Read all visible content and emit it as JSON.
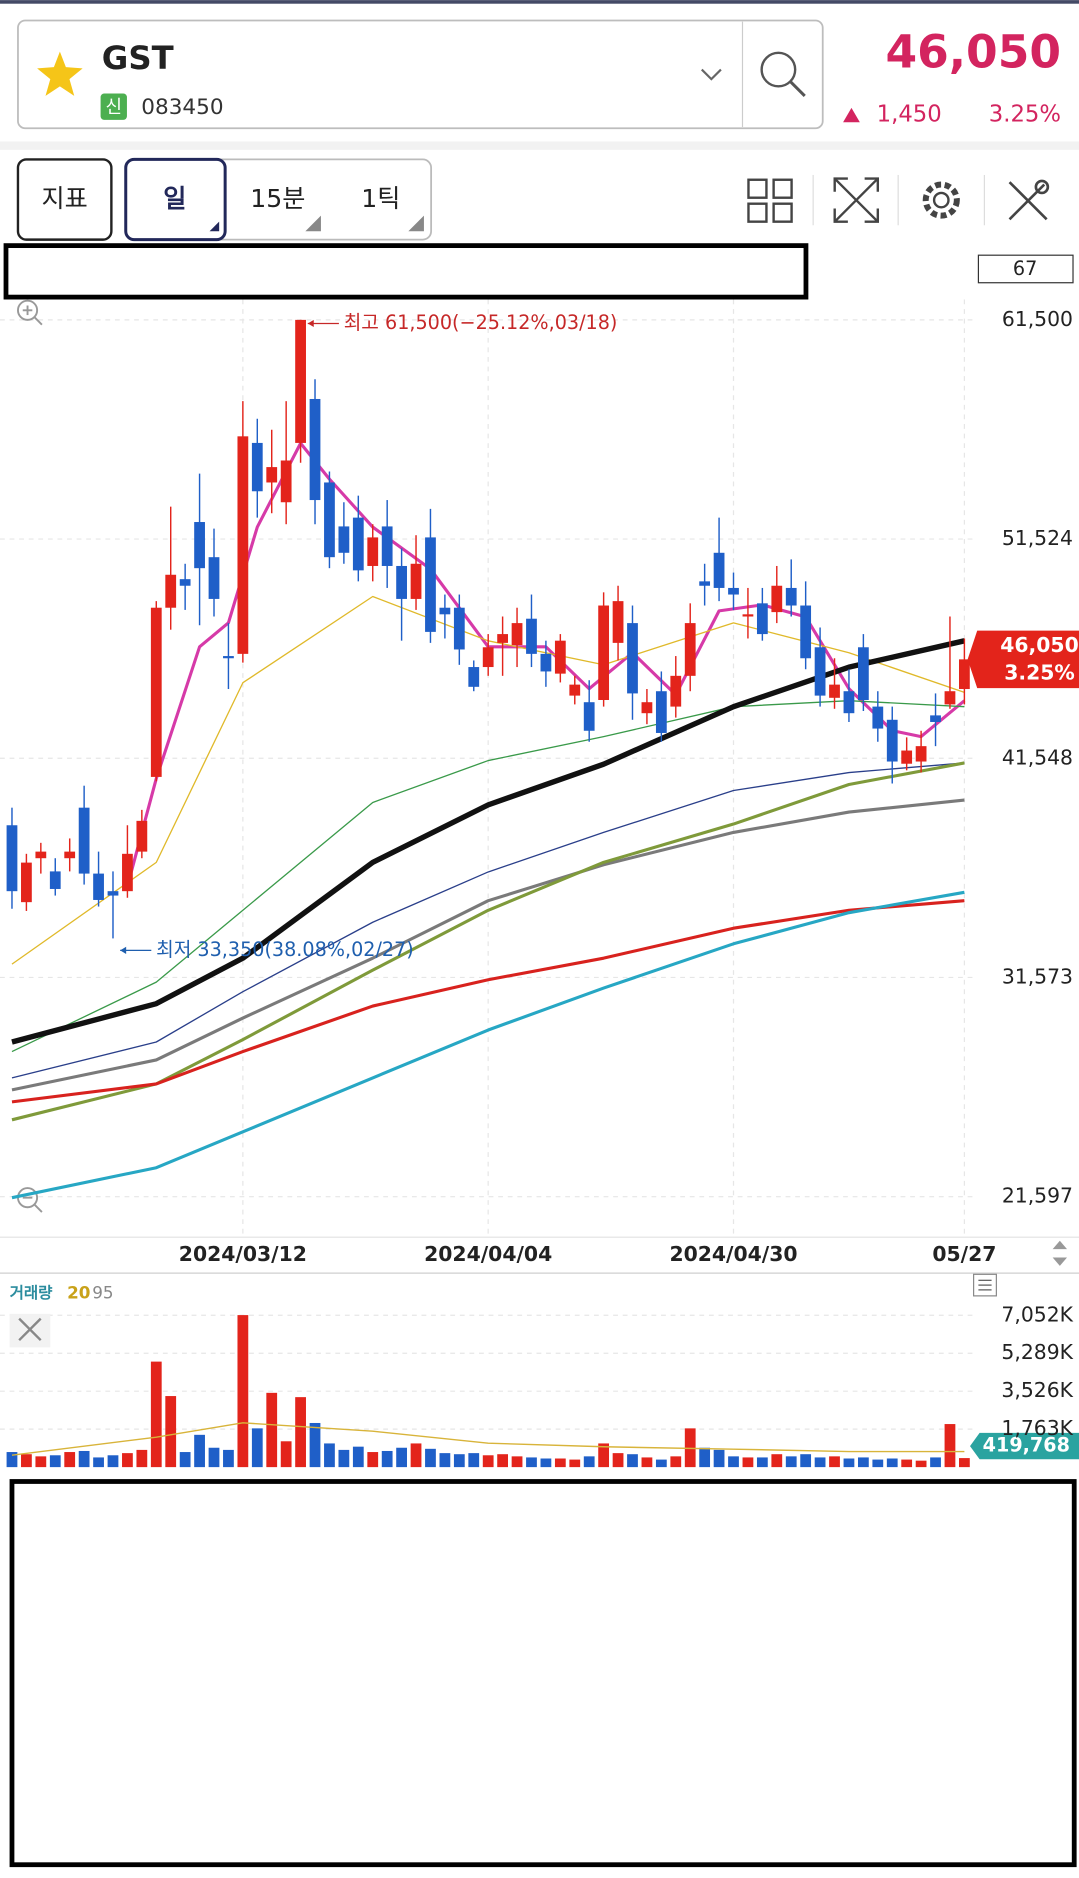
{
  "header": {
    "name": "GST",
    "market_badge": "신",
    "code": "083450",
    "price": "46,050",
    "change": "1,450",
    "change_rate": "3.25%"
  },
  "toolbar": {
    "buttons": [
      "지표",
      "일",
      "15분",
      "1틱"
    ]
  },
  "chart_data": [
    {
      "type": "candlestick",
      "visible_count": 67,
      "categories": [
        null,
        null,
        null,
        null,
        null,
        null,
        null,
        null,
        null,
        null,
        null,
        null,
        null,
        null,
        null,
        null,
        "2024/03/12",
        null,
        null,
        null,
        null,
        null,
        null,
        null,
        null,
        null,
        null,
        null,
        null,
        null,
        null,
        null,
        null,
        "2024/04/04",
        null,
        null,
        null,
        null,
        null,
        null,
        null,
        null,
        null,
        null,
        null,
        null,
        null,
        null,
        null,
        null,
        "2024/04/30",
        null,
        null,
        null,
        null,
        null,
        null,
        null,
        null,
        null,
        null,
        null,
        null,
        null,
        null,
        null,
        "05/27"
      ],
      "open": [
        38500,
        35000,
        37000,
        36400,
        37000,
        39300,
        36300,
        35500,
        35500,
        37300,
        40700,
        48400,
        49700,
        52300,
        50700,
        46200,
        46300,
        55900,
        54100,
        53200,
        55900,
        57900,
        54100,
        52100,
        52500,
        50300,
        52100,
        50300,
        48800,
        51600,
        48400,
        48400,
        45700,
        45700,
        46800,
        46700,
        47900,
        46300,
        45400,
        44400,
        44100,
        44200,
        46800,
        47700,
        43600,
        44600,
        43900,
        45300,
        49600,
        50900,
        49300,
        48000,
        48600,
        48200,
        49300,
        48500,
        46600,
        44300,
        44600,
        46600,
        43900,
        43300,
        41300,
        41400,
        43500,
        44000,
        44700
      ],
      "high": [
        39300,
        37200,
        37700,
        37000,
        37900,
        40300,
        37300,
        36400,
        38500,
        39200,
        48700,
        53000,
        50400,
        54500,
        52000,
        47700,
        57800,
        57000,
        56500,
        57800,
        61500,
        58800,
        54600,
        53200,
        53500,
        52200,
        53300,
        51100,
        51700,
        52900,
        49000,
        49000,
        46000,
        47200,
        48000,
        48400,
        49000,
        46900,
        47200,
        45300,
        45100,
        49100,
        49400,
        48500,
        44700,
        45500,
        46200,
        48600,
        50400,
        52500,
        50000,
        49300,
        49300,
        50300,
        50600,
        49600,
        47500,
        46100,
        45600,
        47200,
        44600,
        43900,
        42500,
        42800,
        44500,
        48000,
        47000
      ],
      "low": [
        34700,
        34600,
        36300,
        35300,
        36400,
        35800,
        34800,
        33350,
        35200,
        37000,
        40500,
        47400,
        48300,
        47600,
        48000,
        44700,
        45900,
        52500,
        52700,
        52200,
        55000,
        52200,
        50200,
        50400,
        49600,
        49600,
        49300,
        46900,
        48300,
        46800,
        47000,
        45800,
        44600,
        45300,
        45300,
        45700,
        45700,
        44800,
        45000,
        44000,
        42300,
        43900,
        46000,
        43300,
        43100,
        42300,
        43400,
        44600,
        48500,
        48700,
        48300,
        47000,
        46900,
        47700,
        48000,
        45600,
        43900,
        43800,
        43200,
        43700,
        42300,
        40400,
        41000,
        40900,
        42100,
        43800,
        44000
      ],
      "close": [
        35500,
        36800,
        37300,
        35600,
        37300,
        36300,
        35100,
        35300,
        37200,
        38700,
        48400,
        49900,
        49400,
        50200,
        48800,
        46100,
        56200,
        53700,
        54800,
        55100,
        61500,
        53300,
        50700,
        50900,
        50100,
        51600,
        50300,
        48800,
        50400,
        47300,
        48100,
        46500,
        44800,
        46600,
        47200,
        47700,
        46300,
        45500,
        46900,
        44900,
        42800,
        48500,
        48700,
        44500,
        44100,
        42700,
        45300,
        47700,
        49400,
        49300,
        49000,
        48100,
        47200,
        49400,
        48500,
        46100,
        44400,
        44900,
        43600,
        44200,
        42900,
        41400,
        41900,
        42100,
        43200,
        44600,
        46050
      ],
      "up_color": "#e3241b",
      "down_color": "#1f5fc8",
      "ylim": [
        19916,
        62427
      ],
      "yticks": [
        {
          "value": 21597,
          "label": "21,597"
        },
        {
          "value": 31573,
          "label": "31,573"
        },
        {
          "value": 41548,
          "label": "41,548"
        },
        {
          "value": 51524,
          "label": "51,524"
        },
        {
          "value": 61500,
          "label": "61,500"
        }
      ],
      "grid": true,
      "series": [
        {
          "color": "#d63aa8",
          "style": "medium",
          "x": [
            8,
            10,
            13,
            15,
            17,
            20,
            22,
            25,
            29,
            33,
            37,
            40,
            43,
            46,
            49,
            52,
            55,
            58,
            61,
            63,
            66
          ],
          "values": [
            35721,
            40626,
            46621,
            47711,
            52071,
            55886,
            54252,
            52071,
            50164,
            46621,
            46621,
            44714,
            46349,
            44441,
            48256,
            48529,
            47984,
            44714,
            42806,
            42534,
            44169
          ]
        },
        {
          "color": "#e0b92a",
          "style": "thin",
          "x": [
            0,
            10,
            16,
            25,
            33,
            41,
            50,
            58,
            66
          ],
          "values": [
            32179,
            36811,
            44986,
            48910,
            46894,
            45804,
            47711,
            46349,
            44550
          ]
        },
        {
          "color": "#3a9a4a",
          "style": "thin",
          "x": [
            0,
            10,
            16,
            25,
            33,
            41,
            50,
            58,
            66
          ],
          "values": [
            28200,
            31361,
            34632,
            39537,
            41444,
            42534,
            43896,
            44169,
            43896
          ]
        },
        {
          "color": "#2a3f8a",
          "style": "thin",
          "x": [
            0,
            10,
            16,
            25,
            33,
            41,
            50,
            58,
            66
          ],
          "values": [
            27001,
            28636,
            30925,
            34086,
            36375,
            38174,
            40081,
            40899,
            41335
          ]
        },
        {
          "color": "#7a7a7a",
          "style": "medium",
          "x": [
            0,
            10,
            16,
            25,
            33,
            41,
            50,
            58,
            66
          ],
          "values": [
            26456,
            27819,
            29726,
            32451,
            35067,
            36702,
            38174,
            39100,
            39645
          ]
        },
        {
          "color": "#7f9a3a",
          "style": "medium",
          "x": [
            0,
            10,
            16,
            25,
            33,
            41,
            50,
            58,
            66
          ],
          "values": [
            25094,
            26729,
            28745,
            31906,
            34631,
            36811,
            38555,
            40354,
            41335
          ]
        },
        {
          "color": "#d8221e",
          "style": "medium",
          "x": [
            0,
            10,
            16,
            25,
            33,
            41,
            50,
            58,
            66
          ],
          "values": [
            25911,
            26729,
            28200,
            30271,
            31470,
            32451,
            33814,
            34632,
            35067
          ]
        },
        {
          "color": "#27a7c4",
          "style": "medium",
          "x": [
            0,
            10,
            16,
            25,
            33,
            41,
            50,
            58,
            66
          ],
          "values": [
            21551,
            22914,
            24549,
            27001,
            29181,
            31089,
            33105,
            34522,
            35449
          ]
        },
        {
          "color": "#111111",
          "style": "thick",
          "x": [
            0,
            10,
            16,
            25,
            33,
            41,
            50,
            58,
            66
          ],
          "values": [
            28636,
            30380,
            32451,
            36811,
            39427,
            41280,
            43896,
            45695,
            46894
          ]
        }
      ],
      "annotations": [
        {
          "text": "최고 61,500(−25.12%,03/18)",
          "color": "#c62828"
        },
        {
          "text": "최저 33,350(38.08%,02/27)",
          "color": "#1f5fae"
        }
      ],
      "last_price_label": "46,050",
      "last_change_label": "3.25%"
    },
    {
      "type": "bar",
      "title": "거래량",
      "title_color": "#2b8c9e",
      "legend": [
        {
          "label": 20,
          "color": "#c9a21a"
        },
        {
          "label": 95,
          "color": "#888888"
        }
      ],
      "values": [
        700,
        600,
        500,
        550,
        700,
        750,
        450,
        550,
        650,
        800,
        4900,
        3300,
        700,
        1500,
        900,
        800,
        7060,
        1800,
        3450,
        1200,
        3250,
        2050,
        1100,
        800,
        950,
        700,
        750,
        900,
        1100,
        850,
        650,
        600,
        650,
        550,
        600,
        500,
        450,
        400,
        400,
        350,
        500,
        1100,
        650,
        600,
        450,
        350,
        500,
        1800,
        900,
        800,
        500,
        450,
        450,
        600,
        500,
        600,
        450,
        500,
        400,
        450,
        350,
        400,
        350,
        300,
        450,
        2000,
        419.768
      ],
      "ylim": [
        0,
        7786
      ],
      "yticks": [
        {
          "value": 1763,
          "label": "1,763K"
        },
        {
          "value": 3526,
          "label": "3,526K"
        },
        {
          "value": 5289,
          "label": "5,289K"
        },
        {
          "value": 7052,
          "label": "7,052K"
        }
      ],
      "grid": true,
      "series": [
        {
          "color": "#d8b43a",
          "x": [
            0,
            10,
            16,
            25,
            33,
            41,
            50,
            58,
            66
          ],
          "values": [
            556,
            1390,
            2057,
            1668,
            1112,
            945,
            834,
            723,
            723
          ]
        }
      ],
      "current_label": "419,768",
      "current_color": "#2aa3a0"
    }
  ]
}
